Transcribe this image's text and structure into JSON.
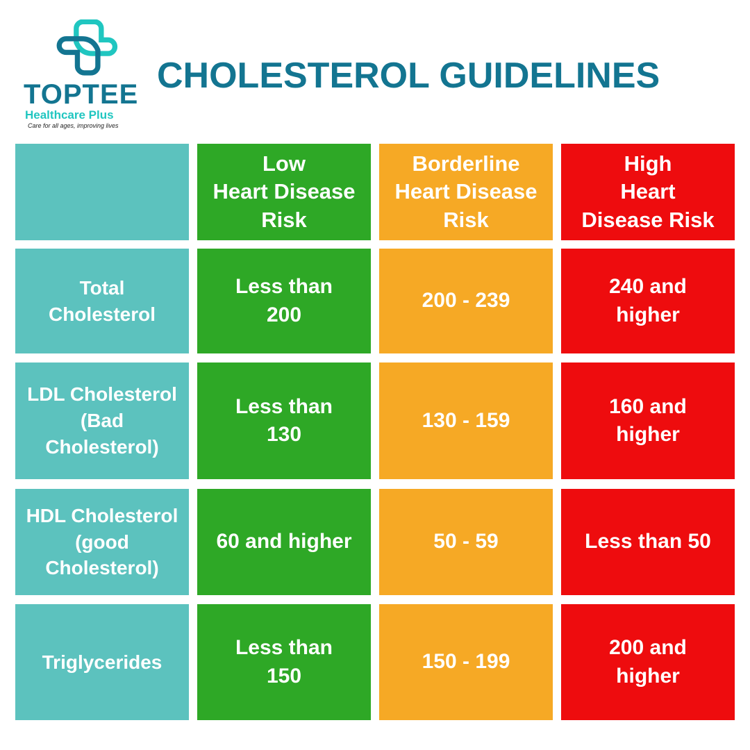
{
  "logo": {
    "brand": "TOPTEE",
    "subtitle": "Healthcare Plus",
    "tagline": "Care for all ages, improving lives",
    "colors": {
      "dark": "#137591",
      "light": "#20c6c0"
    }
  },
  "title": "CHOLESTEROL GUIDELINES",
  "colors": {
    "label": "#5cc2be",
    "low": "#2ea826",
    "borderline": "#f6a925",
    "high": "#ee0c0e"
  },
  "table": {
    "headers": [
      "",
      "Low\nHeart Disease\nRisk",
      "Borderline\nHeart Disease\nRisk",
      "High\nHeart\nDisease Risk"
    ],
    "rows": [
      [
        "Total\nCholesterol",
        "Less than\n200",
        "200 - 239",
        "240 and\nhigher"
      ],
      [
        "LDL Cholesterol\n(Bad\nCholesterol)",
        "Less than\n130",
        "130 - 159",
        "160 and\nhigher"
      ],
      [
        "HDL Cholesterol\n(good\nCholesterol)",
        "60 and higher",
        "50 - 59",
        "Less than 50"
      ],
      [
        "Triglycerides",
        "Less than\n150",
        "150 - 199",
        "200 and\nhigher"
      ]
    ]
  }
}
